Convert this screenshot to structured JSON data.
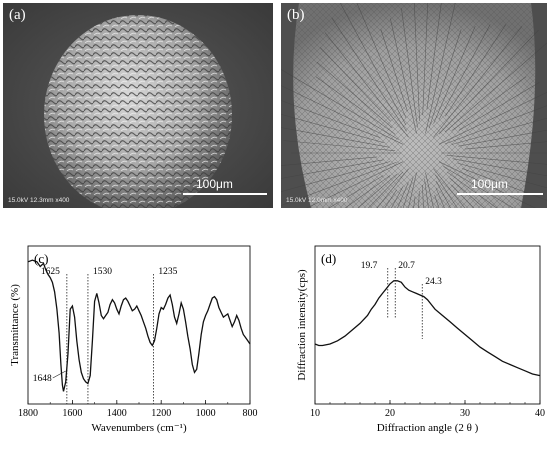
{
  "panel_a": {
    "label": "(a)",
    "meta": "15.0kV 12.3mm x400",
    "scale": "100μm"
  },
  "panel_b": {
    "label": "(b)",
    "meta": "15.0kV 12.0mm x400",
    "scale": "100μm"
  },
  "chart_data": [
    {
      "type": "line",
      "panel_label": "(c)",
      "xlabel": "Wavenumbers (cm⁻¹)",
      "ylabel": "Transmittance (%)",
      "xlim": [
        1800,
        800
      ],
      "x_reversed": true,
      "xticks": [
        "1800",
        "1600",
        "1400",
        "1200",
        "1000",
        "800"
      ],
      "annotations": [
        "1625",
        "1530",
        "1235",
        "1648"
      ],
      "annotation_positions": [
        1625,
        1530,
        1235,
        1648
      ],
      "series": [
        {
          "x": [
            1800,
            1780,
            1760,
            1745,
            1730,
            1720,
            1710,
            1700,
            1690,
            1680,
            1670,
            1660,
            1652,
            1648,
            1645,
            1640,
            1630,
            1620,
            1610,
            1600,
            1590,
            1580,
            1570,
            1560,
            1550,
            1540,
            1530,
            1520,
            1510,
            1500,
            1490,
            1480,
            1470,
            1460,
            1450,
            1440,
            1430,
            1420,
            1410,
            1400,
            1390,
            1380,
            1370,
            1360,
            1350,
            1340,
            1330,
            1320,
            1310,
            1300,
            1290,
            1280,
            1270,
            1260,
            1250,
            1240,
            1230,
            1220,
            1210,
            1200,
            1190,
            1180,
            1170,
            1160,
            1150,
            1140,
            1130,
            1120,
            1110,
            1100,
            1090,
            1080,
            1070,
            1060,
            1050,
            1040,
            1030,
            1020,
            1010,
            1000,
            990,
            980,
            970,
            960,
            950,
            940,
            930,
            920,
            910,
            900,
            890,
            880,
            870,
            860,
            850,
            840,
            830,
            820,
            810,
            800
          ],
          "y": [
            90,
            91,
            90,
            87,
            89,
            85,
            82,
            80,
            77,
            71,
            60,
            45,
            25,
            18,
            12,
            8,
            14,
            32,
            60,
            62,
            55,
            40,
            28,
            20,
            16,
            14,
            13,
            18,
            40,
            65,
            70,
            64,
            56,
            54,
            56,
            58,
            63,
            66,
            64,
            60,
            57,
            62,
            66,
            67,
            65,
            62,
            59,
            60,
            62,
            59,
            56,
            52,
            48,
            43,
            39,
            37,
            40,
            48,
            57,
            61,
            60,
            63,
            67,
            69,
            63,
            55,
            51,
            57,
            64,
            60,
            52,
            43,
            35,
            25,
            20,
            22,
            32,
            44,
            52,
            56,
            59,
            63,
            67,
            68,
            66,
            61,
            58,
            55,
            56,
            57,
            53,
            49,
            52,
            56,
            53,
            48,
            44,
            42,
            40,
            38
          ]
        }
      ]
    },
    {
      "type": "line",
      "panel_label": "(d)",
      "xlabel": "Diffraction angle (2 θ )",
      "ylabel": "Diffraction intensity(cps)",
      "xlim": [
        10,
        40
      ],
      "xticks": [
        "10",
        "20",
        "30",
        "40"
      ],
      "annotations": [
        "19.7",
        "20.7",
        "24.3"
      ],
      "annotation_positions": [
        19.7,
        20.7,
        24.3
      ],
      "series": [
        {
          "x": [
            10,
            10.5,
            11,
            12,
            13,
            14,
            15,
            16,
            17,
            17.5,
            18,
            18.5,
            19,
            19.5,
            20,
            20.5,
            21,
            21.5,
            22,
            22.5,
            23,
            23.5,
            24,
            24.5,
            25,
            25.5,
            26,
            27,
            28,
            29,
            30,
            31,
            32,
            33,
            34,
            35,
            36,
            37,
            38,
            39,
            40
          ],
          "y": [
            38,
            37,
            37,
            38,
            40,
            43,
            47,
            51,
            56,
            60,
            63,
            67,
            70,
            73,
            76,
            78,
            78,
            77,
            74,
            72,
            71,
            70,
            69,
            68,
            66,
            63,
            60,
            56,
            52,
            48,
            44,
            40,
            36,
            33,
            30,
            27,
            25,
            23,
            21,
            19,
            18
          ]
        }
      ]
    }
  ]
}
